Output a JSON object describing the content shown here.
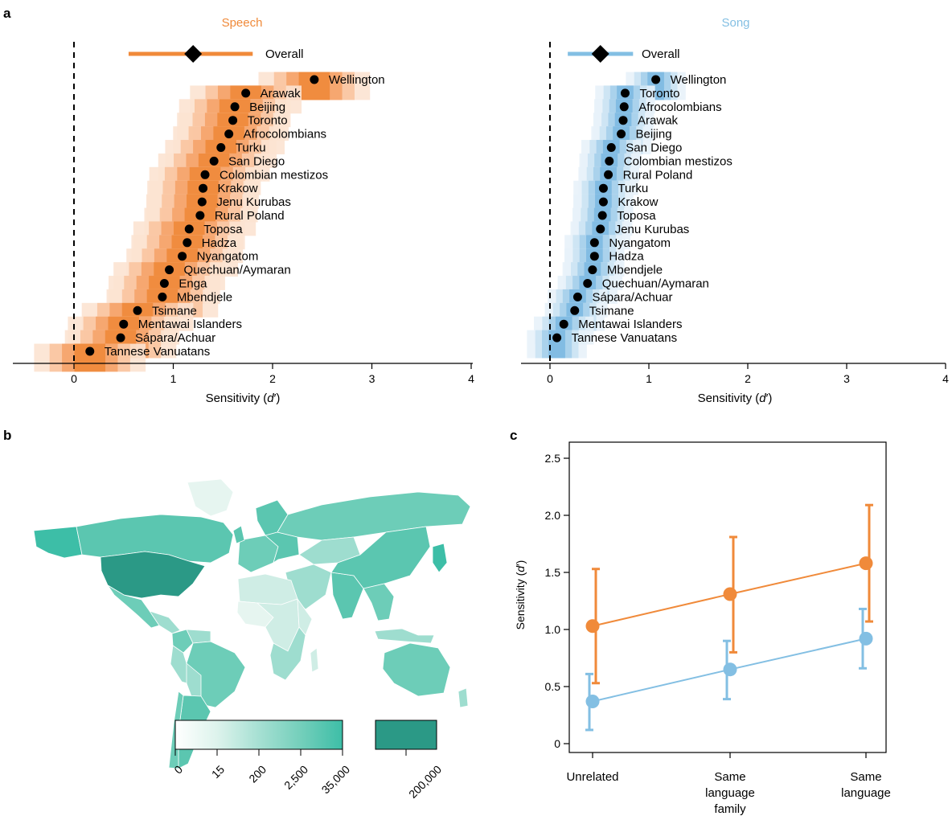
{
  "panel_labels": {
    "a": "a",
    "b": "b",
    "c": "c"
  },
  "colors": {
    "speech": "#F08A3A",
    "speech_shades": [
      "#FCE3D1",
      "#F9C4A0",
      "#F5A36A",
      "#F08A3A"
    ],
    "song": "#83BFE3",
    "song_shades": [
      "#E8F2FA",
      "#CBE3F3",
      "#A6CFEB",
      "#7DB9E2"
    ],
    "map_scale": [
      "#F7FCFA",
      "#CFEDE5",
      "#9EDDCF",
      "#6DCDB8",
      "#3DBEA7"
    ],
    "map_max": "#2B9986"
  },
  "panel_a": {
    "xlabel_prefix": "Sensitivity (",
    "xlabel_var": "d",
    "xlabel_suffix": "′)",
    "overall_label": "Overall",
    "xticks": [
      0,
      1,
      2,
      3,
      4
    ]
  },
  "chart_data": [
    {
      "type": "scatter",
      "title": "Speech",
      "xlabel": "Sensitivity (d′)",
      "xlim": [
        -0.6,
        4
      ],
      "overall": {
        "value": 1.2,
        "ci": [
          0.55,
          1.8
        ]
      },
      "groups": [
        "Wellington",
        "Arawak",
        "Beijing",
        "Toronto",
        "Afrocolombians",
        "Turku",
        "San Diego",
        "Colombian mestizos",
        "Krakow",
        "Jenu Kurubas",
        "Rural Poland",
        "Toposa",
        "Hadza",
        "Nyangatom",
        "Quechuan/Aymaran",
        "Enga",
        "Mbendjele",
        "Tsimane",
        "Mentawai Islanders",
        "Sápara/Achuar",
        "Tannese Vanuatans"
      ],
      "values": [
        2.42,
        1.73,
        1.62,
        1.6,
        1.56,
        1.48,
        1.41,
        1.32,
        1.3,
        1.29,
        1.27,
        1.16,
        1.14,
        1.09,
        0.96,
        0.91,
        0.89,
        0.64,
        0.5,
        0.47,
        0.16
      ]
    },
    {
      "type": "scatter",
      "title": "Song",
      "xlabel": "Sensitivity (d′)",
      "xlim": [
        -0.3,
        4
      ],
      "overall": {
        "value": 0.51,
        "ci": [
          0.18,
          0.84
        ]
      },
      "groups": [
        "Wellington",
        "Toronto",
        "Afrocolombians",
        "Arawak",
        "Beijing",
        "San Diego",
        "Colombian mestizos",
        "Rural Poland",
        "Turku",
        "Krakow",
        "Toposa",
        "Jenu Kurubas",
        "Nyangatom",
        "Hadza",
        "Mbendjele",
        "Quechuan/Aymaran",
        "Sápara/Achuar",
        "Tsimane",
        "Mentawai Islanders",
        "Tannese Vanuatans"
      ],
      "values": [
        1.07,
        0.76,
        0.75,
        0.74,
        0.72,
        0.62,
        0.6,
        0.59,
        0.54,
        0.54,
        0.53,
        0.51,
        0.45,
        0.45,
        0.43,
        0.38,
        0.28,
        0.25,
        0.14,
        0.07
      ]
    },
    {
      "type": "line",
      "ylabel": "Sensitivity (d′)",
      "categories": [
        "Unrelated",
        "Same language family",
        "Same language"
      ],
      "ylim": [
        0,
        2.6
      ],
      "yticks": [
        0,
        0.5,
        1.0,
        1.5,
        2.0,
        2.5
      ],
      "series": [
        {
          "color": "speech",
          "values": [
            1.03,
            1.31,
            1.58
          ],
          "lower": [
            0.53,
            0.8,
            1.07
          ],
          "upper": [
            1.53,
            1.81,
            2.09
          ]
        },
        {
          "color": "song",
          "values": [
            0.37,
            0.65,
            0.92
          ],
          "lower": [
            0.12,
            0.39,
            0.66
          ],
          "upper": [
            0.61,
            0.9,
            1.18
          ]
        }
      ]
    }
  ],
  "panel_b": {
    "legend_ticks": [
      "0",
      "15",
      "200",
      "2,500",
      "35,000"
    ],
    "legend_max_label": "200,000"
  },
  "panel_c": {
    "ylabel_prefix": "Sensitivity (",
    "ylabel_var": "d",
    "ylabel_suffix": "′)",
    "ytick_labels": [
      "0",
      "0.5",
      "1.0",
      "1.5",
      "2.0",
      "2.5"
    ],
    "xtick_lines": [
      [
        "Unrelated"
      ],
      [
        "Same",
        "language",
        "family"
      ],
      [
        "Same",
        "language"
      ]
    ]
  }
}
